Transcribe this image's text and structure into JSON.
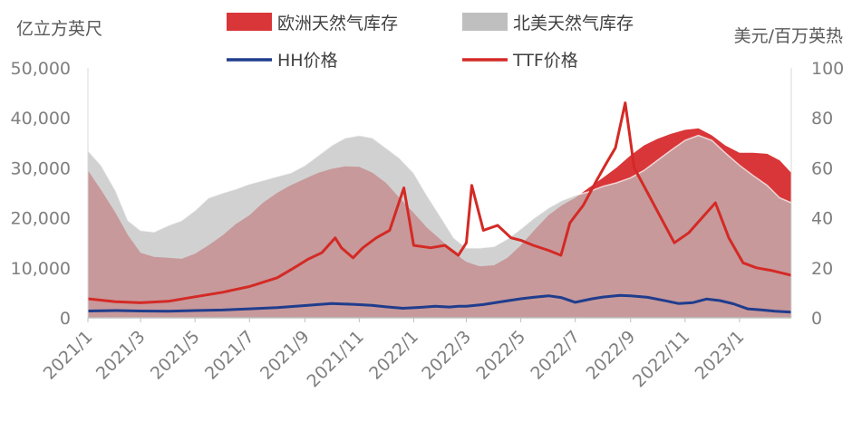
{
  "chart_data": {
    "type": "area",
    "left_axis": {
      "label": "亿立方英尺",
      "ylim": [
        0,
        50000
      ],
      "ticks": [
        "0",
        "10,000",
        "20,000",
        "30,000",
        "40,000",
        "50,000"
      ]
    },
    "right_axis": {
      "label": "美元/百万英热",
      "ylim": [
        0,
        100
      ],
      "ticks": [
        "0",
        "20",
        "40",
        "60",
        "80",
        "100"
      ]
    },
    "x_ticks": [
      "2021/1",
      "2021/3",
      "2021/5",
      "2021/7",
      "2021/9",
      "2021/11",
      "2022/1",
      "2022/3",
      "2022/5",
      "2022/7",
      "2022/9",
      "2022/11",
      "2023/1"
    ],
    "x_range": [
      "2021-01-01",
      "2023-02-28"
    ],
    "grid": false,
    "legend_position": "top",
    "series": [
      {
        "name": "欧洲天然气库存",
        "kind": "area",
        "axis": "left",
        "color": "#d9363a",
        "x": [
          "2021-01-01",
          "2021-01-16",
          "2021-02-01",
          "2021-02-15",
          "2021-03-01",
          "2021-03-16",
          "2021-04-01",
          "2021-04-16",
          "2021-05-01",
          "2021-05-16",
          "2021-06-01",
          "2021-06-16",
          "2021-07-01",
          "2021-07-16",
          "2021-08-01",
          "2021-08-16",
          "2021-09-01",
          "2021-09-16",
          "2021-10-01",
          "2021-10-16",
          "2021-11-01",
          "2021-11-16",
          "2021-12-01",
          "2021-12-16",
          "2022-01-01",
          "2022-01-16",
          "2022-02-01",
          "2022-02-15",
          "2022-03-01",
          "2022-03-16",
          "2022-04-01",
          "2022-04-16",
          "2022-05-01",
          "2022-05-16",
          "2022-06-01",
          "2022-06-16",
          "2022-07-01",
          "2022-07-16",
          "2022-08-01",
          "2022-08-16",
          "2022-09-01",
          "2022-09-16",
          "2022-10-01",
          "2022-10-16",
          "2022-11-01",
          "2022-11-16",
          "2022-12-01",
          "2022-12-16",
          "2023-01-01",
          "2023-01-16",
          "2023-02-01",
          "2023-02-15",
          "2023-02-28"
        ],
        "values": [
          29500,
          25500,
          21000,
          16500,
          13000,
          12200,
          12000,
          11800,
          12800,
          14500,
          16500,
          18800,
          20500,
          23000,
          25000,
          26500,
          27800,
          29000,
          29800,
          30300,
          30200,
          29000,
          27000,
          24000,
          21000,
          18000,
          15500,
          13000,
          11200,
          10300,
          10500,
          12000,
          14500,
          17500,
          20500,
          22500,
          24000,
          26000,
          28000,
          30000,
          32500,
          34500,
          35800,
          36800,
          37600,
          37900,
          36500,
          34500,
          33000,
          33000,
          32800,
          31500,
          29000
        ]
      },
      {
        "name": "北美天然气库存",
        "kind": "area",
        "axis": "left",
        "color": "#bfbfbf",
        "x": [
          "2021-01-01",
          "2021-01-16",
          "2021-02-01",
          "2021-02-15",
          "2021-03-01",
          "2021-03-16",
          "2021-04-01",
          "2021-04-16",
          "2021-05-01",
          "2021-05-16",
          "2021-06-01",
          "2021-06-16",
          "2021-07-01",
          "2021-07-16",
          "2021-08-01",
          "2021-08-16",
          "2021-09-01",
          "2021-09-16",
          "2021-10-01",
          "2021-10-16",
          "2021-11-01",
          "2021-11-16",
          "2021-12-01",
          "2021-12-16",
          "2022-01-01",
          "2022-01-16",
          "2022-02-01",
          "2022-02-15",
          "2022-03-01",
          "2022-03-16",
          "2022-04-01",
          "2022-04-16",
          "2022-05-01",
          "2022-05-16",
          "2022-06-01",
          "2022-06-16",
          "2022-07-01",
          "2022-07-16",
          "2022-08-01",
          "2022-08-16",
          "2022-09-01",
          "2022-09-16",
          "2022-10-01",
          "2022-10-16",
          "2022-11-01",
          "2022-11-16",
          "2022-12-01",
          "2022-12-16",
          "2023-01-01",
          "2023-01-16",
          "2023-02-01",
          "2023-02-15",
          "2023-02-28"
        ],
        "values": [
          33500,
          30500,
          25500,
          19500,
          17500,
          17200,
          18500,
          19500,
          21500,
          24000,
          25000,
          25800,
          26800,
          27500,
          28300,
          29000,
          30500,
          32500,
          34500,
          36000,
          36500,
          36000,
          34000,
          32000,
          29000,
          24500,
          20000,
          16000,
          14000,
          14000,
          14300,
          15800,
          17800,
          20000,
          22000,
          23500,
          24500,
          25200,
          26300,
          27000,
          28000,
          29500,
          31500,
          33500,
          35500,
          36500,
          35500,
          33000,
          30500,
          28500,
          26500,
          24000,
          23000
        ]
      },
      {
        "name": "HH价格",
        "kind": "line",
        "axis": "right",
        "color": "#1f3d8c",
        "x": [
          "2021-01-01",
          "2021-02-01",
          "2021-03-01",
          "2021-04-01",
          "2021-05-01",
          "2021-06-01",
          "2021-07-01",
          "2021-08-01",
          "2021-09-01",
          "2021-10-01",
          "2021-10-25",
          "2021-11-15",
          "2021-12-01",
          "2021-12-20",
          "2022-01-10",
          "2022-01-25",
          "2022-02-10",
          "2022-02-20",
          "2022-03-01",
          "2022-03-20",
          "2022-04-10",
          "2022-05-01",
          "2022-05-15",
          "2022-06-01",
          "2022-06-15",
          "2022-07-01",
          "2022-07-20",
          "2022-08-01",
          "2022-08-20",
          "2022-09-01",
          "2022-09-20",
          "2022-10-10",
          "2022-10-25",
          "2022-11-10",
          "2022-11-25",
          "2022-12-10",
          "2022-12-25",
          "2023-01-10",
          "2023-01-25",
          "2023-02-10",
          "2023-02-28"
        ],
        "values": [
          2.7,
          2.9,
          2.7,
          2.6,
          2.9,
          3.1,
          3.6,
          4.1,
          4.9,
          5.7,
          5.4,
          5.0,
          4.4,
          3.8,
          4.2,
          4.6,
          4.3,
          4.6,
          4.6,
          5.3,
          6.5,
          7.6,
          8.2,
          8.8,
          8.1,
          6.2,
          7.6,
          8.3,
          9.0,
          8.8,
          8.2,
          6.8,
          5.7,
          6.1,
          7.5,
          6.9,
          5.6,
          3.6,
          3.2,
          2.6,
          2.3
        ]
      },
      {
        "name": "TTF价格",
        "kind": "line",
        "axis": "right",
        "color": "#d42a26",
        "x": [
          "2021-01-01",
          "2021-02-01",
          "2021-03-01",
          "2021-04-01",
          "2021-05-01",
          "2021-06-01",
          "2021-07-01",
          "2021-08-01",
          "2021-08-20",
          "2021-09-05",
          "2021-09-20",
          "2021-10-05",
          "2021-10-12",
          "2021-10-25",
          "2021-11-05",
          "2021-11-20",
          "2021-12-05",
          "2021-12-21",
          "2022-01-01",
          "2022-01-20",
          "2022-02-05",
          "2022-02-20",
          "2022-03-01",
          "2022-03-07",
          "2022-03-20",
          "2022-04-05",
          "2022-04-20",
          "2022-05-01",
          "2022-05-15",
          "2022-06-01",
          "2022-06-15",
          "2022-06-25",
          "2022-07-10",
          "2022-07-25",
          "2022-08-05",
          "2022-08-15",
          "2022-08-26",
          "2022-09-05",
          "2022-09-20",
          "2022-10-05",
          "2022-10-20",
          "2022-11-05",
          "2022-11-20",
          "2022-12-05",
          "2022-12-20",
          "2023-01-05",
          "2023-01-20",
          "2023-02-05",
          "2023-02-28"
        ],
        "values": [
          7.6,
          6.4,
          6.0,
          6.6,
          8.4,
          10.2,
          12.5,
          16.0,
          20.0,
          23.5,
          26.0,
          32.0,
          28.0,
          24.0,
          28.0,
          32.0,
          35.0,
          52.0,
          29.0,
          28.0,
          29.0,
          25.0,
          30.0,
          53.0,
          35.0,
          37.0,
          32.0,
          31.0,
          29.0,
          27.0,
          25.0,
          38.0,
          45.0,
          55.0,
          62.0,
          68.0,
          86.0,
          60.0,
          50.0,
          40.0,
          30.0,
          34.0,
          40.0,
          46.0,
          32.0,
          22.0,
          20.0,
          19.0,
          17.0
        ]
      }
    ]
  }
}
